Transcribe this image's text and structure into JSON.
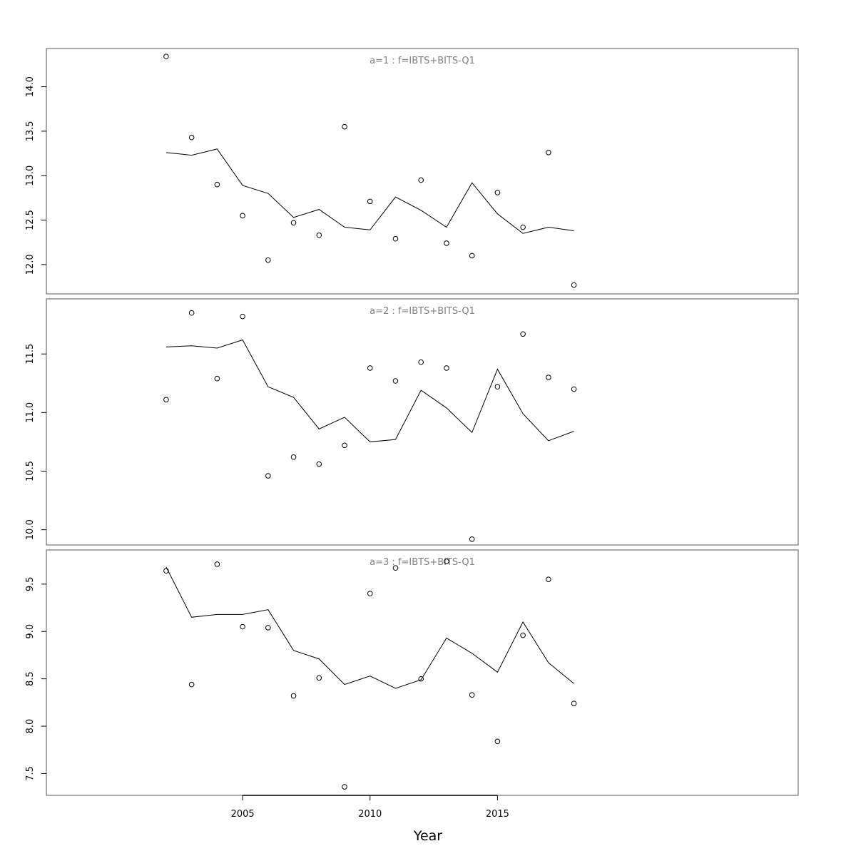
{
  "chart_data": {
    "type": "line",
    "xlabel": "Year",
    "x": [
      2002,
      2003,
      2004,
      2005,
      2006,
      2007,
      2008,
      2009,
      2010,
      2011,
      2012,
      2013,
      2014,
      2015,
      2016,
      2017,
      2018
    ],
    "xticks": [
      2005,
      2010,
      2015
    ],
    "xlim": [
      1997.3,
      2026.8
    ],
    "panels": [
      {
        "title": "a=1 : f=IBTS+BITS-Q1",
        "ylim": [
          11.67,
          14.43
        ],
        "yticks": [
          12.0,
          12.5,
          13.0,
          13.5,
          14.0
        ],
        "ytick_labels": [
          "12.0",
          "12.5",
          "13.0",
          "13.5",
          "14.0"
        ],
        "observed": [
          14.34,
          13.43,
          12.9,
          12.55,
          12.05,
          12.47,
          12.33,
          13.55,
          12.71,
          12.29,
          12.95,
          12.24,
          12.1,
          12.81,
          12.42,
          13.26,
          11.77
        ],
        "fitted": [
          13.26,
          13.23,
          13.3,
          12.89,
          12.8,
          12.53,
          12.62,
          12.42,
          12.39,
          12.76,
          12.61,
          12.42,
          12.92,
          12.57,
          12.35,
          12.42,
          12.38
        ]
      },
      {
        "title": "a=2 : f=IBTS+BITS-Q1",
        "ylim": [
          9.87,
          11.97
        ],
        "yticks": [
          10.0,
          10.5,
          11.0,
          11.5
        ],
        "ytick_labels": [
          "10.0",
          "10.5",
          "11.0",
          "11.5"
        ],
        "observed": [
          11.11,
          11.85,
          11.29,
          11.82,
          10.46,
          10.62,
          10.56,
          10.72,
          11.38,
          11.27,
          11.43,
          11.38,
          9.92,
          11.22,
          11.67,
          11.3,
          11.2
        ],
        "fitted": [
          11.56,
          11.57,
          11.55,
          11.62,
          11.22,
          11.13,
          10.86,
          10.96,
          10.75,
          10.77,
          11.19,
          11.04,
          10.83,
          11.37,
          10.99,
          10.76,
          10.84
        ]
      },
      {
        "title": "a=3 : f=IBTS+BITS-Q1",
        "ylim": [
          7.27,
          9.86
        ],
        "yticks": [
          7.5,
          8.0,
          8.5,
          9.0,
          9.5
        ],
        "ytick_labels": [
          "7.5",
          "8.0",
          "8.5",
          "9.0",
          "9.5"
        ],
        "observed": [
          9.64,
          8.44,
          9.71,
          9.05,
          9.04,
          8.32,
          8.51,
          7.36,
          9.4,
          9.67,
          8.5,
          9.74,
          8.33,
          7.84,
          8.96,
          9.55,
          8.24
        ],
        "fitted": [
          9.68,
          9.15,
          9.18,
          9.18,
          9.23,
          8.8,
          8.71,
          8.44,
          8.53,
          8.4,
          8.49,
          8.93,
          8.77,
          8.57,
          9.1,
          8.67,
          8.45
        ]
      }
    ],
    "colors": {
      "line": "#000000",
      "points": "#000000",
      "panel_title": "#7f7f7f",
      "frame": "#555555"
    }
  }
}
